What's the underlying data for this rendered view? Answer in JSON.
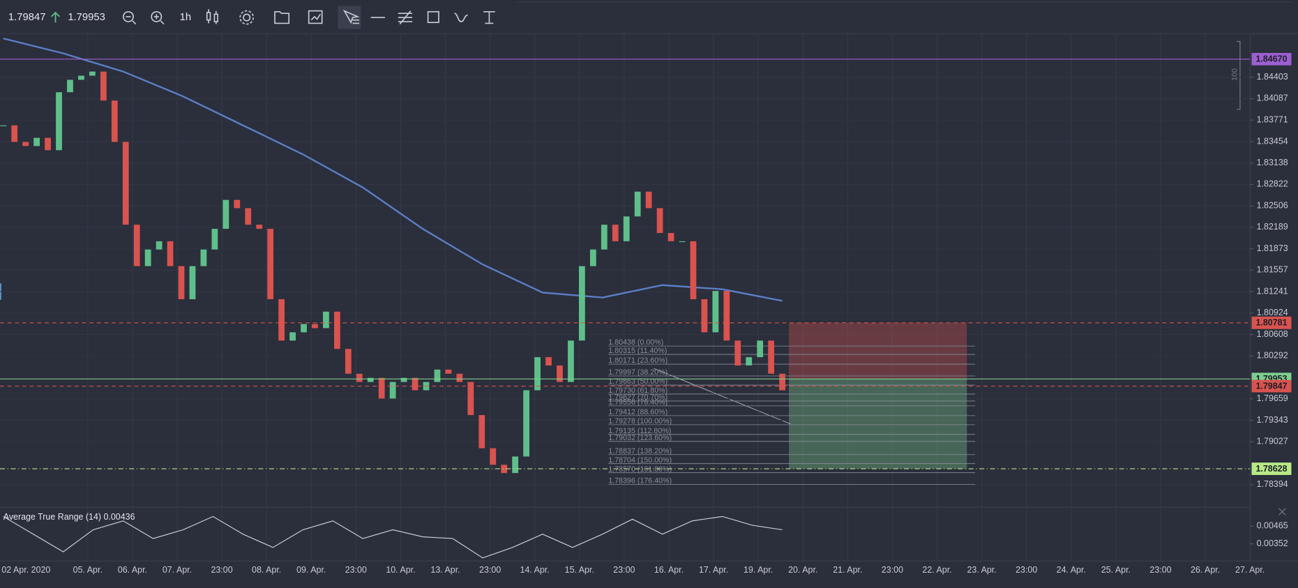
{
  "toolbar": {
    "bid": "1.79847",
    "ask": "1.79953",
    "timeframe": "1h"
  },
  "chart_data": {
    "type": "candlestick",
    "closes": [
      1.83693,
      1.83449,
      1.83388,
      1.8351,
      1.83327,
      1.84182,
      1.84365,
      1.84426,
      1.84487,
      1.84059,
      1.83449,
      1.82228,
      1.81617,
      1.81862,
      1.81984,
      1.81617,
      1.81129,
      1.81617,
      1.81862,
      1.82167,
      1.82594,
      1.82472,
      1.82228,
      1.82167,
      1.81129,
      1.80519,
      1.80641,
      1.80763,
      1.80702,
      1.80946,
      1.80396,
      1.8003,
      1.79908,
      1.79969,
      1.79664,
      1.79908,
      1.79969,
      1.79786,
      1.79908,
      1.80091,
      1.8003,
      1.79908,
      1.7942,
      1.78931,
      1.78687,
      1.78565,
      1.78809,
      1.79786,
      1.80274,
      1.80152,
      1.79908,
      1.80519,
      1.81617,
      1.81862,
      1.82228,
      1.81984,
      1.8235,
      1.82716,
      1.82472,
      1.82106,
      1.81984,
      1.81984,
      1.81129,
      1.80641,
      1.81251,
      1.80519,
      1.80152,
      1.80274,
      1.80519,
      1.8003,
      1.79786
    ],
    "up_color": "#5fbf8a",
    "down_color": "#d9534f",
    "ylim": [
      1.7808,
      1.8504
    ],
    "yticks": [
      1.84403,
      1.84087,
      1.83771,
      1.83454,
      1.83138,
      1.82822,
      1.82506,
      1.82189,
      1.81873,
      1.81557,
      1.81241,
      1.80924,
      1.80608,
      1.80292,
      1.79659,
      1.79343,
      1.79027,
      1.78394
    ],
    "time_labels": [
      "02 Apr. 2020",
      "05. Apr.",
      "06. Apr.",
      "07. Apr.",
      "23:00",
      "08. Apr.",
      "09. Apr.",
      "23:00",
      "10. Apr.",
      "13. Apr.",
      "23:00",
      "14. Apr.",
      "15. Apr.",
      "23:00",
      "16. Apr.",
      "17. Apr.",
      "19. Apr.",
      "20. Apr.",
      "21. Apr.",
      "23:00",
      "22. Apr.",
      "23. Apr.",
      "23:00",
      "24. Apr.",
      "25. Apr.",
      "23:00",
      "26. Apr.",
      "27. Apr."
    ],
    "ma": {
      "color": "#5b7fc7",
      "values": [
        1.84975,
        1.84755,
        1.84487,
        1.84121,
        1.83693,
        1.83266,
        1.82777,
        1.82167,
        1.81642,
        1.81227,
        1.81154,
        1.81337,
        1.81276,
        1.81105
      ]
    },
    "levels": [
      {
        "value": 1.8467,
        "label": "1.84670",
        "color": "#9c5fd0",
        "style": "solid"
      },
      {
        "value": 1.80781,
        "label": "1.80781",
        "color": "#d9534f",
        "style": "dashed"
      },
      {
        "value": 1.79953,
        "label": "1.79953",
        "color": "#7ecf8e",
        "style": "solid"
      },
      {
        "value": 1.79847,
        "label": "1.79847",
        "color": "#d9534f",
        "style": "dashed"
      },
      {
        "value": 1.78628,
        "label": "1.78628",
        "color": "#b8e986",
        "style": "dashdot"
      }
    ],
    "fib": [
      {
        "value": 1.80438,
        "label": "1.80438 (0.00%)"
      },
      {
        "value": 1.80315,
        "label": "1.80315 (11.40%)"
      },
      {
        "value": 1.80171,
        "label": "1.80171 (23.60%)"
      },
      {
        "value": 1.79997,
        "label": "1.79997 (38.20%)"
      },
      {
        "value": 1.79863,
        "label": "1.79863 (50.00%)"
      },
      {
        "value": 1.7973,
        "label": "1.79730 (61.80%)"
      },
      {
        "value": 1.79627,
        "label": "1.79627 (70.70%)"
      },
      {
        "value": 1.79556,
        "label": "1.79556 (76.40%)"
      },
      {
        "value": 1.79412,
        "label": "1.79412 (88.60%)"
      },
      {
        "value": 1.79278,
        "label": "1.79278 (100.00%)"
      },
      {
        "value": 1.79135,
        "label": "1.79135 (112.80%)"
      },
      {
        "value": 1.79032,
        "label": "1.79032 (123.60%)"
      },
      {
        "value": 1.78837,
        "label": "1.78837 (138.20%)"
      },
      {
        "value": 1.78704,
        "label": "1.78704 (150.00%)"
      },
      {
        "value": 1.7857,
        "label": "1.78570 (161.80%)"
      },
      {
        "value": 1.78396,
        "label": "1.78396 (176.40%)"
      }
    ],
    "indicator": {
      "label": "Average True Range (14) 0.00436",
      "color": "#c8ccd6",
      "ylim": [
        0.00245,
        0.00584
      ],
      "yticks": [
        0.00465,
        0.00352
      ],
      "values": [
        0.00527,
        0.00414,
        0.00301,
        0.00442,
        0.00499,
        0.00386,
        0.00442,
        0.00527,
        0.00414,
        0.00329,
        0.00442,
        0.00499,
        0.00386,
        0.00442,
        0.00397,
        0.00386,
        0.00262,
        0.00329,
        0.00414,
        0.00329,
        0.00414,
        0.0051,
        0.00414,
        0.00499,
        0.00527,
        0.00471,
        0.00442
      ]
    },
    "scale_note": "100"
  }
}
